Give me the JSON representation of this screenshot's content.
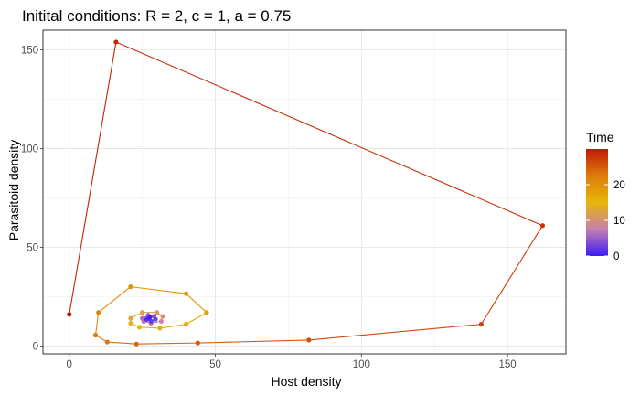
{
  "chart_data": {
    "type": "line",
    "title": "Initital conditions: R = 2, c = 1, a = 0.75",
    "xlabel": "Host density",
    "ylabel": "Parasitoid density",
    "xlim": [
      -9,
      170
    ],
    "ylim": [
      -4,
      160
    ],
    "xticks": [
      0,
      50,
      100,
      150
    ],
    "yticks": [
      0,
      50,
      100,
      150
    ],
    "grid": true,
    "legend": {
      "title": "Time",
      "position": "right",
      "type": "colorbar",
      "range": [
        0,
        30
      ],
      "ticks": [
        0,
        10,
        20
      ],
      "colors": [
        "#3d1cf6",
        "#c57fb0",
        "#e8b60a",
        "#dc7d0c",
        "#c21a05"
      ]
    },
    "series": [
      {
        "points": [
          {
            "x": 0,
            "y": 16,
            "t": 30
          },
          {
            "x": 16,
            "y": 154,
            "t": 29
          },
          {
            "x": 162,
            "y": 61,
            "t": 28
          },
          {
            "x": 141,
            "y": 11,
            "t": 27
          },
          {
            "x": 82,
            "y": 3,
            "t": 26
          },
          {
            "x": 44,
            "y": 1.5,
            "t": 25
          },
          {
            "x": 23,
            "y": 1,
            "t": 24
          },
          {
            "x": 13,
            "y": 2,
            "t": 23
          },
          {
            "x": 9,
            "y": 5.5,
            "t": 22
          },
          {
            "x": 10,
            "y": 17,
            "t": 21
          },
          {
            "x": 21,
            "y": 30,
            "t": 20
          },
          {
            "x": 40,
            "y": 26.5,
            "t": 19
          },
          {
            "x": 47,
            "y": 17,
            "t": 18
          },
          {
            "x": 40,
            "y": 11,
            "t": 17
          },
          {
            "x": 31,
            "y": 9,
            "t": 16
          },
          {
            "x": 24,
            "y": 9.5,
            "t": 15
          },
          {
            "x": 21,
            "y": 11.5,
            "t": 14
          },
          {
            "x": 21,
            "y": 14,
            "t": 13
          },
          {
            "x": 25,
            "y": 17,
            "t": 12
          },
          {
            "x": 30,
            "y": 17,
            "t": 11
          },
          {
            "x": 32,
            "y": 15,
            "t": 10
          },
          {
            "x": 31.5,
            "y": 12.5,
            "t": 9
          },
          {
            "x": 28,
            "y": 11.5,
            "t": 8
          },
          {
            "x": 25.5,
            "y": 12.5,
            "t": 7
          },
          {
            "x": 25,
            "y": 14,
            "t": 6
          },
          {
            "x": 27,
            "y": 15.5,
            "t": 5
          },
          {
            "x": 29,
            "y": 15,
            "t": 4
          },
          {
            "x": 29.5,
            "y": 13.5,
            "t": 3
          },
          {
            "x": 28,
            "y": 12.5,
            "t": 2
          },
          {
            "x": 26.5,
            "y": 13.5,
            "t": 1
          },
          {
            "x": 27.5,
            "y": 14.5,
            "t": 0
          }
        ]
      }
    ]
  }
}
